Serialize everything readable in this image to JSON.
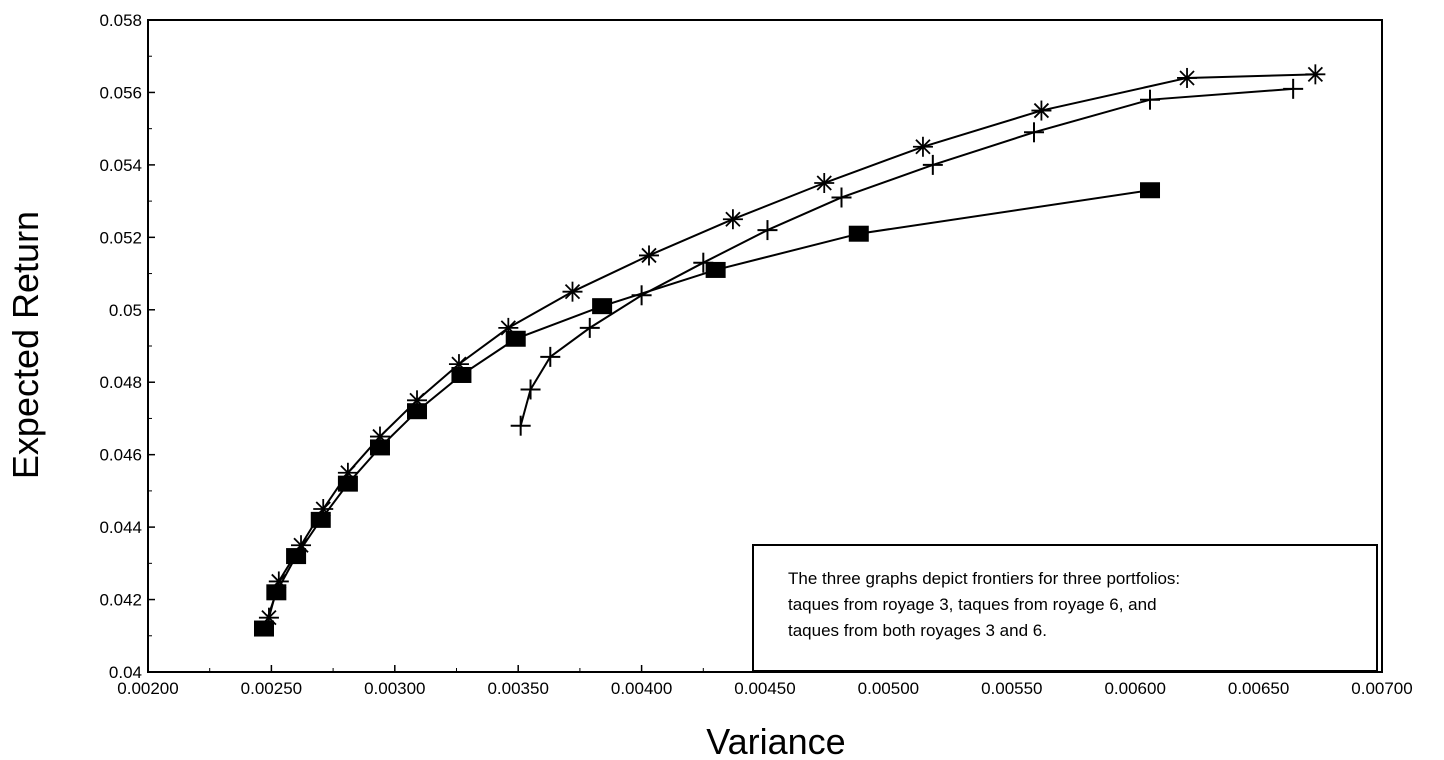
{
  "chart_data": {
    "type": "line",
    "title": "",
    "xlabel": "Variance",
    "ylabel": "Expected Return",
    "xlim": [
      0.002,
      0.007
    ],
    "ylim": [
      0.04,
      0.058
    ],
    "x_ticks": [
      "0.00200",
      "0.00250",
      "0.00300",
      "0.00350",
      "0.00400",
      "0.00450",
      "0.00500",
      "0.00550",
      "0.00600",
      "0.00650",
      "0.00700"
    ],
    "y_ticks": [
      "0.04",
      "0.042",
      "0.044",
      "0.046",
      "0.048",
      "0.05",
      "0.052",
      "0.054",
      "0.056",
      "0.058"
    ],
    "grid": false,
    "legend": "none",
    "series": [
      {
        "marker": "asterisk",
        "points": [
          [
            0.00249,
            0.0415
          ],
          [
            0.00253,
            0.0425
          ],
          [
            0.00262,
            0.0435
          ],
          [
            0.00271,
            0.0445
          ],
          [
            0.00281,
            0.0455
          ],
          [
            0.00294,
            0.0465
          ],
          [
            0.00309,
            0.0475
          ],
          [
            0.00326,
            0.0485
          ],
          [
            0.00346,
            0.0495
          ],
          [
            0.00372,
            0.0505
          ],
          [
            0.00403,
            0.0515
          ],
          [
            0.00437,
            0.0525
          ],
          [
            0.00474,
            0.0535
          ],
          [
            0.00514,
            0.0545
          ],
          [
            0.00562,
            0.0555
          ],
          [
            0.00621,
            0.0564
          ],
          [
            0.00673,
            0.0565
          ]
        ]
      },
      {
        "marker": "plus",
        "points": [
          [
            0.00351,
            0.0468
          ],
          [
            0.00355,
            0.0478
          ],
          [
            0.00363,
            0.0487
          ],
          [
            0.00379,
            0.0495
          ],
          [
            0.004,
            0.0504
          ],
          [
            0.00425,
            0.0513
          ],
          [
            0.00451,
            0.0522
          ],
          [
            0.00481,
            0.0531
          ],
          [
            0.00518,
            0.054
          ],
          [
            0.00559,
            0.0549
          ],
          [
            0.00606,
            0.0558
          ],
          [
            0.00664,
            0.0561
          ]
        ]
      },
      {
        "marker": "filled-square",
        "points": [
          [
            0.00247,
            0.0412
          ],
          [
            0.00252,
            0.0422
          ],
          [
            0.0026,
            0.0432
          ],
          [
            0.0027,
            0.0442
          ],
          [
            0.00281,
            0.0452
          ],
          [
            0.00294,
            0.0462
          ],
          [
            0.00309,
            0.0472
          ],
          [
            0.00327,
            0.0482
          ],
          [
            0.00349,
            0.0492
          ],
          [
            0.00384,
            0.0501
          ],
          [
            0.0043,
            0.0511
          ],
          [
            0.00488,
            0.0521
          ],
          [
            0.00606,
            0.0533
          ]
        ]
      }
    ],
    "annotation": [
      "The three graphs depict frontiers for three portfolios:",
      "taques from royage 3, taques from royage 6, and",
      "taques from both royages 3 and 6."
    ]
  }
}
